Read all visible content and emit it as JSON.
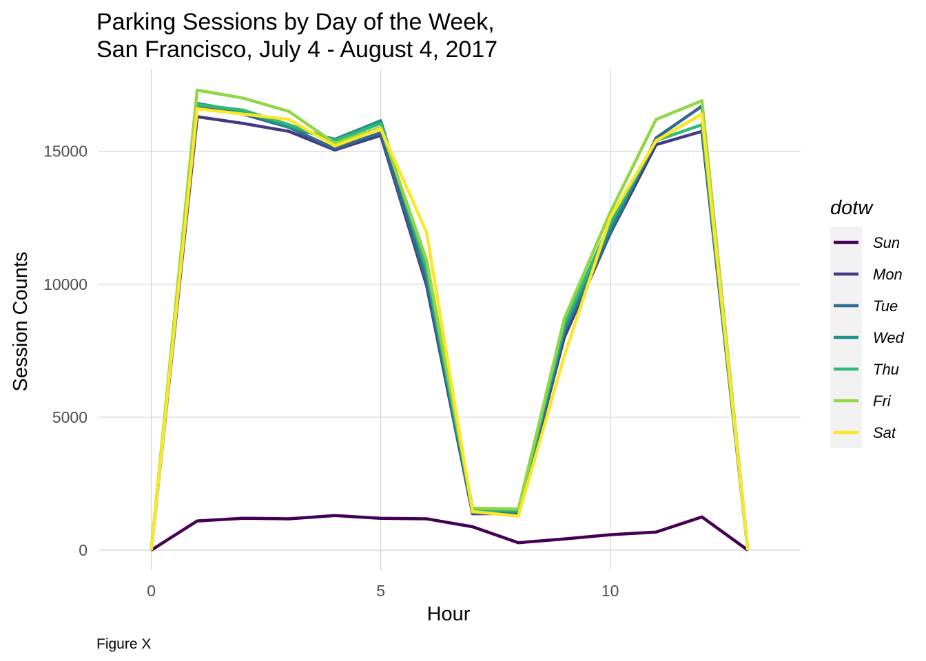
{
  "chart_data": {
    "type": "line",
    "title_line1": "Parking Sessions by Day of the Week,",
    "title_line2": "San Francisco, July 4 - August 4, 2017",
    "xlabel": "Hour",
    "ylabel": "Session Counts",
    "caption": "Figure X",
    "legend_title": "dotw",
    "legend_position": "right",
    "grid": true,
    "xlim": [
      -1.15,
      14.15
    ],
    "ylim": [
      -750,
      18100
    ],
    "x_ticks": [
      0,
      5,
      10
    ],
    "y_ticks": [
      0,
      5000,
      10000,
      15000
    ],
    "x": [
      0,
      1,
      2,
      3,
      4,
      5,
      6,
      7,
      8,
      9,
      10,
      11,
      12,
      13
    ],
    "series": [
      {
        "name": "Sun",
        "color": "#440154",
        "values": [
          0,
          1100,
          1200,
          1180,
          1300,
          1200,
          1180,
          880,
          280,
          420,
          580,
          680,
          1250,
          0
        ]
      },
      {
        "name": "Mon",
        "color": "#443A83",
        "values": [
          0,
          16300,
          16050,
          15750,
          15050,
          15600,
          9950,
          1370,
          1380,
          8000,
          11900,
          15250,
          15750,
          0
        ]
      },
      {
        "name": "Tue",
        "color": "#31688E",
        "values": [
          0,
          16700,
          16400,
          15900,
          15100,
          15700,
          10100,
          1400,
          1400,
          8200,
          11900,
          15500,
          16700,
          0
        ]
      },
      {
        "name": "Wed",
        "color": "#21908C",
        "values": [
          0,
          16800,
          16500,
          15900,
          15450,
          16150,
          10400,
          1500,
          1450,
          8300,
          12100,
          15400,
          16400,
          0
        ]
      },
      {
        "name": "Thu",
        "color": "#35B779",
        "values": [
          0,
          16750,
          16550,
          16000,
          15400,
          16050,
          10600,
          1500,
          1500,
          8500,
          12300,
          15400,
          16000,
          0
        ]
      },
      {
        "name": "Fri",
        "color": "#8FD744",
        "values": [
          0,
          17300,
          17000,
          16500,
          15300,
          15900,
          10900,
          1580,
          1550,
          8700,
          12700,
          16200,
          16900,
          0
        ]
      },
      {
        "name": "Sat",
        "color": "#FDE725",
        "values": [
          0,
          16600,
          16400,
          16200,
          15200,
          15850,
          11950,
          1450,
          1280,
          7300,
          12500,
          15400,
          16400,
          0
        ]
      }
    ]
  }
}
